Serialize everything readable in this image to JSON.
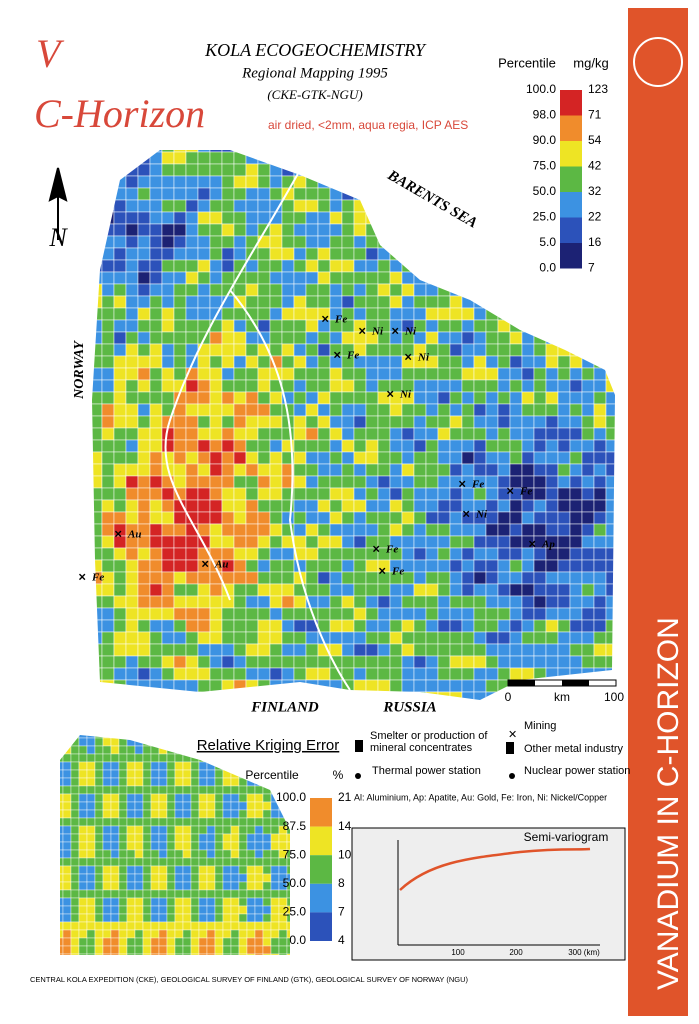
{
  "header": {
    "element": "V",
    "horizon": "C-Horizon",
    "project": "KOLA ECOGEOCHEMISTRY",
    "subtitle": "Regional Mapping 1995",
    "agencies": "(CKE-GTK-NGU)",
    "method": "air dried, <2mm, aqua regia, ICP AES"
  },
  "legend": {
    "percentile_title": "Percentile",
    "unit_title": "mg/kg",
    "percentiles": [
      "100.0",
      "98.0",
      "90.0",
      "75.0",
      "50.0",
      "25.0",
      "5.0",
      "0.0"
    ],
    "values": [
      "123",
      "71",
      "54",
      "42",
      "32",
      "22",
      "16",
      "7"
    ],
    "colors": [
      "#d42424",
      "#f08c2c",
      "#eee424",
      "#5cb844",
      "#3c92e2",
      "#2c52ba",
      "#1c2274"
    ]
  },
  "map": {
    "north": "N",
    "sea": "BARENTS SEA",
    "countries": [
      "NORWAY",
      "FINLAND",
      "RUSSIA"
    ],
    "scale": [
      "0",
      "km",
      "100"
    ],
    "site_labels": [
      "Au",
      "Au",
      "Fe",
      "Fe",
      "Ni",
      "Ni",
      "Fe",
      "Ni",
      "Ni",
      "Fe",
      "Fe",
      "Ni",
      "Fe",
      "Fe",
      "Ap"
    ]
  },
  "symbols": {
    "smelter": "Smelter or production of mineral concentrates",
    "mining": "Mining",
    "metal": "Other metal industry",
    "thermal": "Thermal power station",
    "nuclear": "Nuclear power station",
    "abbreviations": "Al: Aluminium, Ap: Apatite, Au: Gold, Fe: Iron, Ni: Nickel/Copper"
  },
  "error": {
    "title": "Relative Kriging Error",
    "percentile_title": "Percentile",
    "unit_title": "%",
    "percentiles": [
      "100.0",
      "87.5",
      "75.0",
      "50.0",
      "25.0",
      "0.0"
    ],
    "values": [
      "21",
      "14",
      "10",
      "8",
      "7",
      "4"
    ],
    "colors": [
      "#f08c2c",
      "#eee424",
      "#5cb844",
      "#3c92e2",
      "#2c52ba"
    ]
  },
  "variogram": {
    "title": "Semi-variogram",
    "xticks": [
      "100",
      "200",
      "300 (km)"
    ]
  },
  "banner": "VANADIUM IN C-HORIZON",
  "footer": "CENTRAL KOLA EXPEDITION (CKE), GEOLOGICAL SURVEY OF FINLAND (GTK), GEOLOGICAL SURVEY OF NORWAY (NGU)"
}
